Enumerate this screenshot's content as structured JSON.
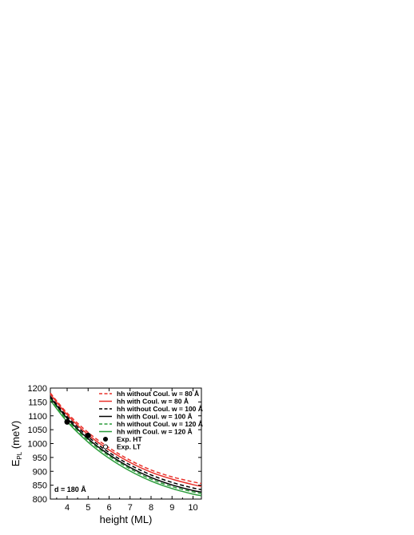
{
  "chart_data": {
    "type": "line",
    "xlabel": "height (ML)",
    "ylabel_main": "E",
    "ylabel_sub": "PL",
    "ylabel_unit": " (meV)",
    "xlim": [
      3.2,
      10.4
    ],
    "ylim": [
      800,
      1200
    ],
    "xticks": [
      4,
      5,
      6,
      7,
      8,
      9,
      10
    ],
    "yticks": [
      800,
      850,
      900,
      950,
      1000,
      1050,
      1100,
      1150,
      1200
    ],
    "annotation": "d = 180 Å",
    "legend_position": "top-right",
    "series": [
      {
        "name": "hh without Coul. w = 80 Å",
        "color": "#e8302a",
        "dash": "dashed",
        "x": [
          3.2,
          4,
          5,
          6,
          7,
          8,
          9,
          10,
          10.4
        ],
        "y": [
          1182,
          1110,
          1040,
          985,
          940,
          905,
          880,
          862,
          856
        ]
      },
      {
        "name": "hh with Coul. w = 80 Å",
        "color": "#e8302a",
        "dash": "solid",
        "x": [
          3.2,
          4,
          5,
          6,
          7,
          8,
          9,
          10,
          10.4
        ],
        "y": [
          1178,
          1104,
          1032,
          977,
          932,
          897,
          872,
          852,
          846
        ]
      },
      {
        "name": "hh without Coul. w = 100 Å",
        "color": "#000000",
        "dash": "dashed",
        "x": [
          3.2,
          4,
          5,
          6,
          7,
          8,
          9,
          10,
          10.4
        ],
        "y": [
          1170,
          1097,
          1025,
          968,
          923,
          887,
          860,
          840,
          834
        ]
      },
      {
        "name": "hh with Coul. w = 100 Å",
        "color": "#000000",
        "dash": "solid",
        "x": [
          3.2,
          4,
          5,
          6,
          7,
          8,
          9,
          10,
          10.4
        ],
        "y": [
          1166,
          1091,
          1017,
          960,
          914,
          878,
          851,
          831,
          825
        ]
      },
      {
        "name": "hh without Coul. w = 120 Å",
        "color": "#2a9c3a",
        "dash": "dashed",
        "x": [
          3.2,
          4,
          5,
          6,
          7,
          8,
          9,
          10,
          10.4
        ],
        "y": [
          1160,
          1085,
          1012,
          955,
          909,
          872,
          845,
          826,
          820
        ]
      },
      {
        "name": "hh with Coul. w = 120 Å",
        "color": "#2a9c3a",
        "dash": "solid",
        "x": [
          3.2,
          4,
          5,
          6,
          7,
          8,
          9,
          10,
          10.4
        ],
        "y": [
          1156,
          1079,
          1005,
          947,
          901,
          865,
          838,
          818,
          812
        ]
      }
    ],
    "points": [
      {
        "name": "Exp. HT",
        "marker": "filled-circle",
        "x": [
          4,
          5
        ],
        "y": [
          1078,
          1029
        ]
      },
      {
        "name": "Exp. LT",
        "marker": "open-circle",
        "x": [],
        "y": []
      }
    ]
  }
}
